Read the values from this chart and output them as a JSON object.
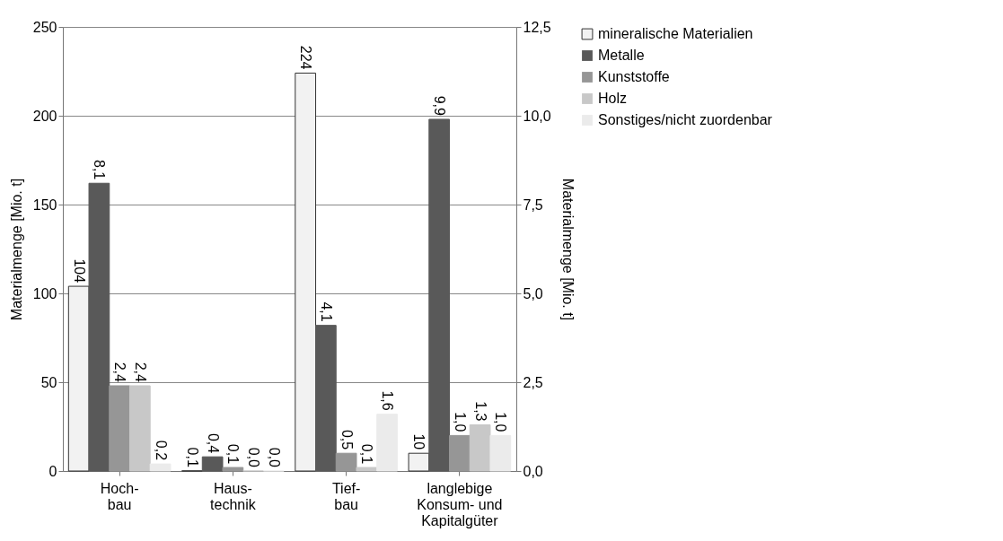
{
  "chart_data": {
    "type": "bar",
    "ylabel": "Materialmenge [Mio. t]",
    "y2label": "Materialmenge [Mio. t]",
    "categories": [
      "Hoch-\nbau",
      "Haus-\ntechnik",
      "Tief-\nbau",
      "langlebige\nKonsum- und\nKapitalgüter"
    ],
    "series": [
      {
        "name": "mineralische Materialien",
        "color": "#f2f2f2",
        "values": [
          104,
          0.1,
          224,
          10
        ],
        "value_labels": [
          "104",
          "0,1",
          "224",
          "10"
        ]
      },
      {
        "name": "Metalle",
        "color": "#595959",
        "axis": "y2",
        "values": [
          8.1,
          0.4,
          4.1,
          9.9
        ],
        "value_labels": [
          "8,1",
          "0,4",
          "4,1",
          "9,9"
        ]
      },
      {
        "name": "Kunststoffe",
        "color": "#969696",
        "axis": "y2",
        "values": [
          2.4,
          0.1,
          0.5,
          1.0
        ],
        "value_labels": [
          "2,4",
          "0,1",
          "0,5",
          "1,0"
        ]
      },
      {
        "name": "Holz",
        "color": "#c8c8c8",
        "axis": "y2",
        "values": [
          2.4,
          0.0,
          0.1,
          1.3
        ],
        "value_labels": [
          "2,4",
          "0,0",
          "0,1",
          "1,3"
        ]
      },
      {
        "name": "Sonstiges/nicht zuordenbar",
        "color": "#ebebeb",
        "axis": "y2",
        "values": [
          0.2,
          0.0,
          1.6,
          1.0
        ],
        "value_labels": [
          "0,2",
          "0,0",
          "1,6",
          "1,0"
        ]
      }
    ],
    "ylim": [
      0,
      250
    ],
    "yticks": [
      0,
      50,
      100,
      150,
      200,
      250
    ],
    "y2lim": [
      0,
      12.5
    ],
    "y2ticks": [
      {
        "value": 0,
        "label": "0,0"
      },
      {
        "value": 2.5,
        "label": "2,5"
      },
      {
        "value": 5,
        "label": "5,0"
      },
      {
        "value": 7.5,
        "label": "7,5"
      },
      {
        "value": 10,
        "label": "10,0"
      },
      {
        "value": 12.5,
        "label": "12,5"
      }
    ],
    "grid": "y",
    "legend": "right"
  }
}
